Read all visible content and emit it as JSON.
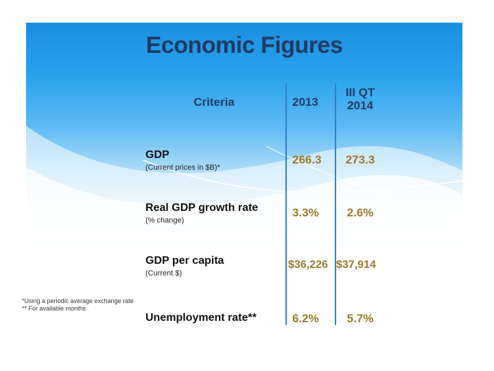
{
  "title": "Economic Figures",
  "headers": {
    "criteria": "Criteria",
    "year1": "2013",
    "year2_line1": "III QT",
    "year2_line2": "2014"
  },
  "rows": [
    {
      "label": "GDP",
      "sub": "(Current prices in $B)*",
      "v2013": "266.3",
      "v2014": "273.3"
    },
    {
      "label": "Real GDP growth rate",
      "sub": "(% change)",
      "v2013": "3.3%",
      "v2014": "2.6%"
    },
    {
      "label": "GDP per capita",
      "sub": "(Current $)",
      "v2013": "$36,226",
      "v2014": "$37,914"
    },
    {
      "label": "Unemployment rate**",
      "sub": "",
      "v2013": "6.2%",
      "v2014": "5.7%"
    }
  ],
  "notes": [
    "*Using a periodic average exchange rate",
    "** For available months"
  ],
  "colors": {
    "title": "#1f3b63",
    "values": "#9c7a2a",
    "grid": "#2f7fc8"
  }
}
